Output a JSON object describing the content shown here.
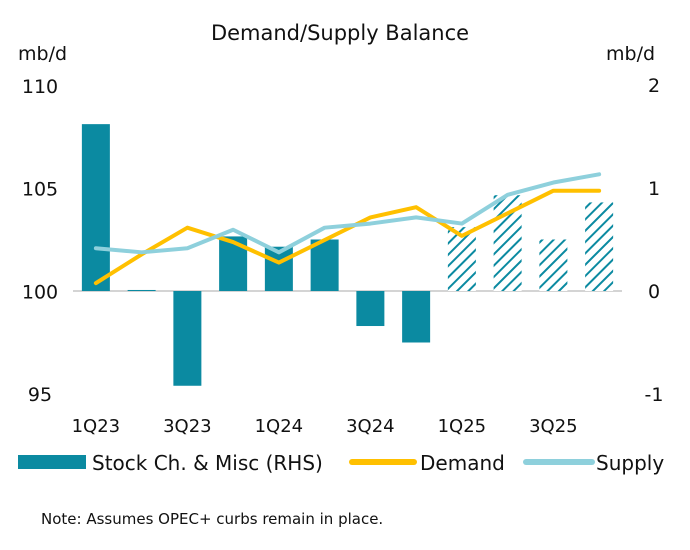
{
  "chart_data": {
    "type": "bar+line",
    "title": "Demand/Supply Balance",
    "left_axis": {
      "label": "mb/d",
      "ylim": [
        95,
        110
      ],
      "ticks": [
        "110",
        "105",
        "100",
        "95"
      ]
    },
    "right_axis": {
      "label": "mb/d",
      "ylim": [
        -1,
        2
      ],
      "ticks": [
        "2",
        "1",
        "0",
        "-1"
      ]
    },
    "categories": [
      "1Q23",
      "2Q23",
      "3Q23",
      "4Q23",
      "1Q24",
      "2Q24",
      "3Q24",
      "4Q24",
      "1Q25",
      "2Q25",
      "3Q25",
      "4Q25"
    ],
    "x_tick_labels": [
      "1Q23",
      "3Q23",
      "1Q24",
      "3Q24",
      "1Q25",
      "3Q25"
    ],
    "series": [
      {
        "name": "Stock Ch. & Misc (RHS)",
        "type": "bar",
        "axis": "right",
        "color": "#0b8aa1",
        "forecast_start_index": 8,
        "values": [
          1.62,
          0.01,
          -0.92,
          0.53,
          0.43,
          0.5,
          -0.34,
          -0.5,
          0.62,
          0.93,
          0.5,
          0.86
        ]
      },
      {
        "name": "Demand",
        "type": "line",
        "axis": "left",
        "color": "#ffc000",
        "values": [
          100.4,
          101.8,
          103.1,
          102.4,
          101.4,
          102.5,
          103.6,
          104.1,
          102.7,
          103.8,
          104.9,
          104.9
        ]
      },
      {
        "name": "Supply",
        "type": "line",
        "axis": "left",
        "color": "#8ed0dc",
        "values": [
          102.1,
          101.9,
          102.1,
          103.0,
          101.9,
          103.1,
          103.3,
          103.6,
          103.3,
          104.7,
          105.3,
          105.7
        ]
      }
    ],
    "legend": {
      "placement": "bottom",
      "items": [
        "Stock Ch. & Misc (RHS)",
        "Demand",
        "Supply"
      ]
    },
    "note": "Note: Assumes OPEC+ curbs remain in place."
  }
}
